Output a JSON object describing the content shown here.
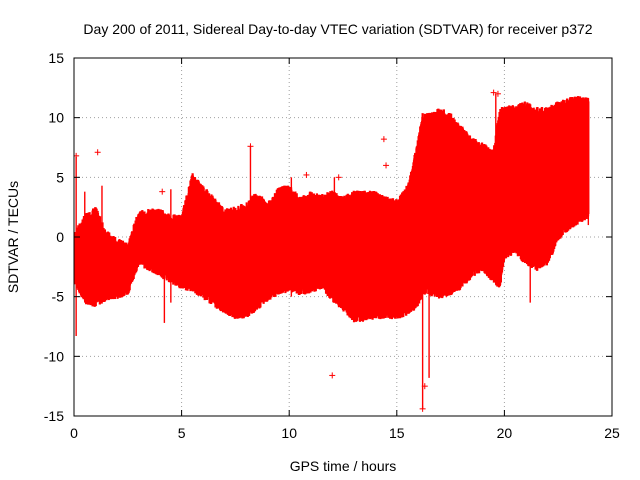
{
  "chart_data": {
    "type": "scatter",
    "title": "Day 200 of 2011, Sidereal Day-to-day VTEC variation (SDTVAR) for receiver p372",
    "xlabel": "GPS time / hours",
    "ylabel": "SDTVAR / TECUs",
    "xlim": [
      0,
      25
    ],
    "ylim": [
      -15,
      15
    ],
    "xticks": [
      0,
      5,
      10,
      15,
      20,
      25
    ],
    "yticks": [
      -15,
      -10,
      -5,
      0,
      5,
      10,
      15
    ],
    "grid": true,
    "marker": "+",
    "color": "#ff0000",
    "band": {
      "description": "dense cloud of samples: min / max SDTVAR envelope per time",
      "x": [
        0.0,
        0.5,
        1.0,
        1.5,
        2.0,
        2.5,
        3.0,
        3.5,
        4.0,
        4.5,
        5.0,
        5.5,
        6.0,
        6.5,
        7.0,
        7.5,
        8.0,
        8.5,
        9.0,
        9.5,
        10.0,
        10.5,
        11.0,
        11.5,
        12.0,
        12.5,
        13.0,
        13.5,
        14.0,
        14.5,
        15.0,
        15.5,
        16.0,
        16.2,
        16.5,
        17.0,
        17.5,
        18.0,
        18.5,
        19.0,
        19.5,
        19.8,
        20.0,
        20.5,
        21.0,
        21.5,
        22.0,
        22.5,
        23.0,
        23.5,
        23.9
      ],
      "lower": [
        -3.5,
        -5.2,
        -5.5,
        -5.0,
        -4.8,
        -4.5,
        -2.0,
        -2.5,
        -3.0,
        -3.5,
        -4.0,
        -4.2,
        -4.8,
        -5.5,
        -6.0,
        -6.5,
        -6.5,
        -5.8,
        -5.0,
        -4.5,
        -4.2,
        -4.5,
        -4.3,
        -4.0,
        -5.0,
        -5.8,
        -6.8,
        -6.7,
        -6.5,
        -6.5,
        -6.5,
        -6.2,
        -5.5,
        -4.5,
        -4.5,
        -4.8,
        -4.5,
        -4.0,
        -3.0,
        -2.5,
        -3.5,
        -4.0,
        -1.5,
        -1.0,
        -2.0,
        -2.5,
        -2.0,
        0.0,
        1.0,
        1.5,
        2.0
      ],
      "upper": [
        0.0,
        1.5,
        2.2,
        0.2,
        -0.5,
        -0.8,
        1.8,
        2.0,
        2.0,
        1.5,
        1.5,
        5.0,
        4.0,
        3.0,
        2.0,
        2.2,
        2.5,
        3.5,
        2.5,
        3.8,
        4.0,
        3.0,
        3.5,
        3.2,
        3.5,
        3.0,
        3.5,
        3.5,
        3.5,
        3.0,
        2.8,
        4.0,
        8.0,
        10.0,
        10.0,
        10.5,
        10.0,
        9.0,
        8.0,
        7.5,
        7.0,
        10.5,
        10.5,
        10.8,
        11.0,
        10.5,
        10.5,
        11.0,
        11.3,
        11.5,
        11.3
      ]
    },
    "outliers": [
      {
        "x": 1.1,
        "y": 7.1
      },
      {
        "x": 0.1,
        "y": 6.8
      },
      {
        "x": 8.2,
        "y": 7.6
      },
      {
        "x": 10.8,
        "y": 5.2
      },
      {
        "x": 12.0,
        "y": -11.6
      },
      {
        "x": 12.3,
        "y": 5.0
      },
      {
        "x": 14.4,
        "y": 8.2
      },
      {
        "x": 14.5,
        "y": 6.0
      },
      {
        "x": 16.2,
        "y": -14.4
      },
      {
        "x": 16.3,
        "y": -12.5
      },
      {
        "x": 19.5,
        "y": 12.1
      },
      {
        "x": 19.7,
        "y": 12.0
      },
      {
        "x": 21.3,
        "y": 3.2
      },
      {
        "x": 17.3,
        "y": -4.8
      },
      {
        "x": 7.1,
        "y": -5.8
      },
      {
        "x": 4.1,
        "y": 3.8
      }
    ],
    "spikes": [
      {
        "x": 0.1,
        "y0": -8.3,
        "y1": 6.7
      },
      {
        "x": 0.5,
        "y0": -5.5,
        "y1": 3.8
      },
      {
        "x": 1.3,
        "y0": -5.2,
        "y1": 4.3
      },
      {
        "x": 4.2,
        "y0": -7.2,
        "y1": 1.5
      },
      {
        "x": 4.5,
        "y0": -5.5,
        "y1": 4.0
      },
      {
        "x": 8.2,
        "y0": -6.3,
        "y1": 7.6
      },
      {
        "x": 10.1,
        "y0": -5.0,
        "y1": 5.0
      },
      {
        "x": 12.1,
        "y0": -5.5,
        "y1": 5.0
      },
      {
        "x": 16.2,
        "y0": -14.4,
        "y1": 8.0
      },
      {
        "x": 16.5,
        "y0": -11.8,
        "y1": 9.0
      },
      {
        "x": 19.6,
        "y0": -4.0,
        "y1": 12.0
      },
      {
        "x": 21.2,
        "y0": -5.5,
        "y1": 3.5
      },
      {
        "x": 23.9,
        "y0": 1.0,
        "y1": 10.4
      }
    ]
  }
}
